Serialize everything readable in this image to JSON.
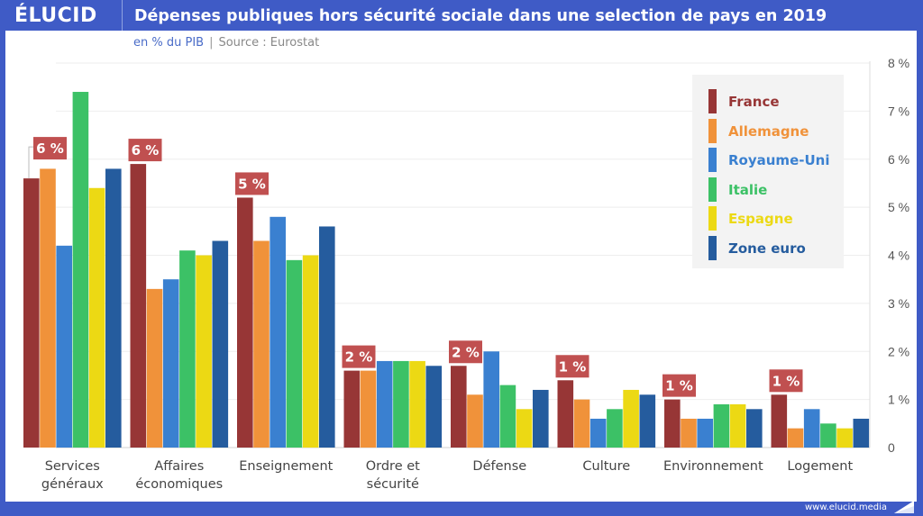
{
  "header": {
    "brand": "ÉLUCID",
    "title": "Dépenses publiques hors sécurité sociale dans une selection de pays en 2019",
    "unit": "en % du PIB",
    "separator": "|",
    "source": "Source : Eurostat"
  },
  "footer": {
    "url": "www.elucid.media"
  },
  "colors": {
    "France": "#973636",
    "Allemagne": "#f0923a",
    "Royaume-Uni": "#3a80d0",
    "Italie": "#3cc166",
    "Espagne": "#ecd914",
    "Zone euro": "#255c9e",
    "label_bg": "#c05050",
    "brand": "#3f5bc6"
  },
  "chart_data": {
    "type": "bar",
    "title": "Dépenses publiques hors sécurité sociale dans une selection de pays en 2019",
    "subtitle": "en % du PIB | Source : Eurostat",
    "xlabel": "",
    "ylabel": "",
    "ylim": [
      0,
      8
    ],
    "y_axis_side": "right",
    "y_ticks": [
      0,
      1,
      2,
      3,
      4,
      5,
      6,
      7,
      8
    ],
    "y_tick_labels": [
      "0",
      "1 %",
      "2 %",
      "3 %",
      "4 %",
      "5 %",
      "6 %",
      "7 %",
      "8 %"
    ],
    "grid": true,
    "legend_position": "top-right",
    "categories": [
      [
        "Services",
        "généraux"
      ],
      [
        "Affaires",
        "économiques"
      ],
      [
        "Enseignement"
      ],
      [
        "Ordre et",
        "sécurité"
      ],
      [
        "Défense"
      ],
      [
        "Culture"
      ],
      [
        "Environnement"
      ],
      [
        "Logement"
      ]
    ],
    "series": [
      {
        "name": "France",
        "values": [
          5.6,
          5.9,
          5.2,
          1.6,
          1.7,
          1.4,
          1.0,
          1.1
        ]
      },
      {
        "name": "Allemagne",
        "values": [
          5.8,
          3.3,
          4.3,
          1.6,
          1.1,
          1.0,
          0.6,
          0.4
        ]
      },
      {
        "name": "Royaume-Uni",
        "values": [
          4.2,
          3.5,
          4.8,
          1.8,
          2.0,
          0.6,
          0.6,
          0.8
        ]
      },
      {
        "name": "Italie",
        "values": [
          7.4,
          4.1,
          3.9,
          1.8,
          1.3,
          0.8,
          0.9,
          0.5
        ]
      },
      {
        "name": "Espagne",
        "values": [
          5.4,
          4.0,
          4.0,
          1.8,
          0.8,
          1.2,
          0.9,
          0.4
        ]
      },
      {
        "name": "Zone euro",
        "values": [
          5.8,
          4.3,
          4.6,
          1.7,
          1.2,
          1.1,
          0.8,
          0.6
        ]
      }
    ],
    "annotations": [
      "6 %",
      "6 %",
      "5 %",
      "2 %",
      "2 %",
      "1 %",
      "1 %",
      "1 %"
    ],
    "annotation_series": "France"
  }
}
